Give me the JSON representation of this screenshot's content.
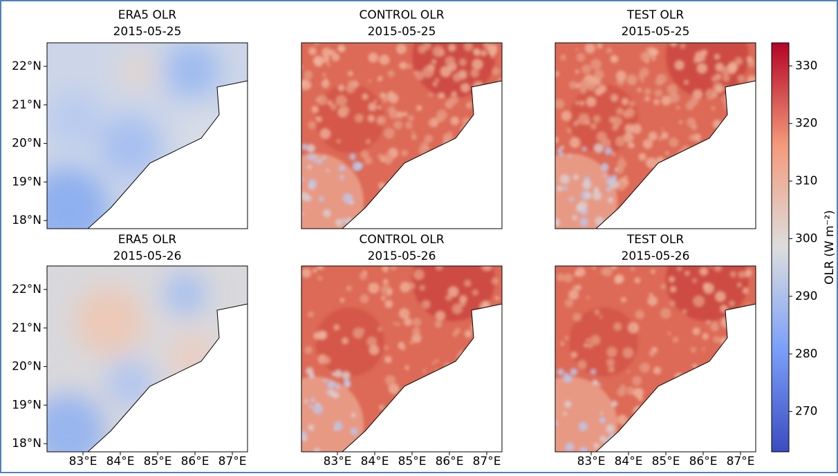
{
  "panels": [
    {
      "title": "ERA5 OLR",
      "date": "2015-05-25"
    },
    {
      "title": "CONTROL OLR",
      "date": "2015-05-25"
    },
    {
      "title": "TEST OLR",
      "date": "2015-05-25"
    },
    {
      "title": "ERA5 OLR",
      "date": "2015-05-26"
    },
    {
      "title": "CONTROL OLR",
      "date": "2015-05-26"
    },
    {
      "title": "TEST OLR",
      "date": "2015-05-26"
    }
  ],
  "lat_ticks": [
    "22°N",
    "21°N",
    "20°N",
    "19°N",
    "18°N"
  ],
  "lon_ticks": [
    "83°E",
    "84°E",
    "85°E",
    "86°E",
    "87°E"
  ],
  "colorbar": {
    "label": "OLR (W m⁻²)",
    "range": [
      263,
      334
    ],
    "ticks": [
      270,
      280,
      290,
      300,
      310,
      320,
      330
    ]
  }
}
